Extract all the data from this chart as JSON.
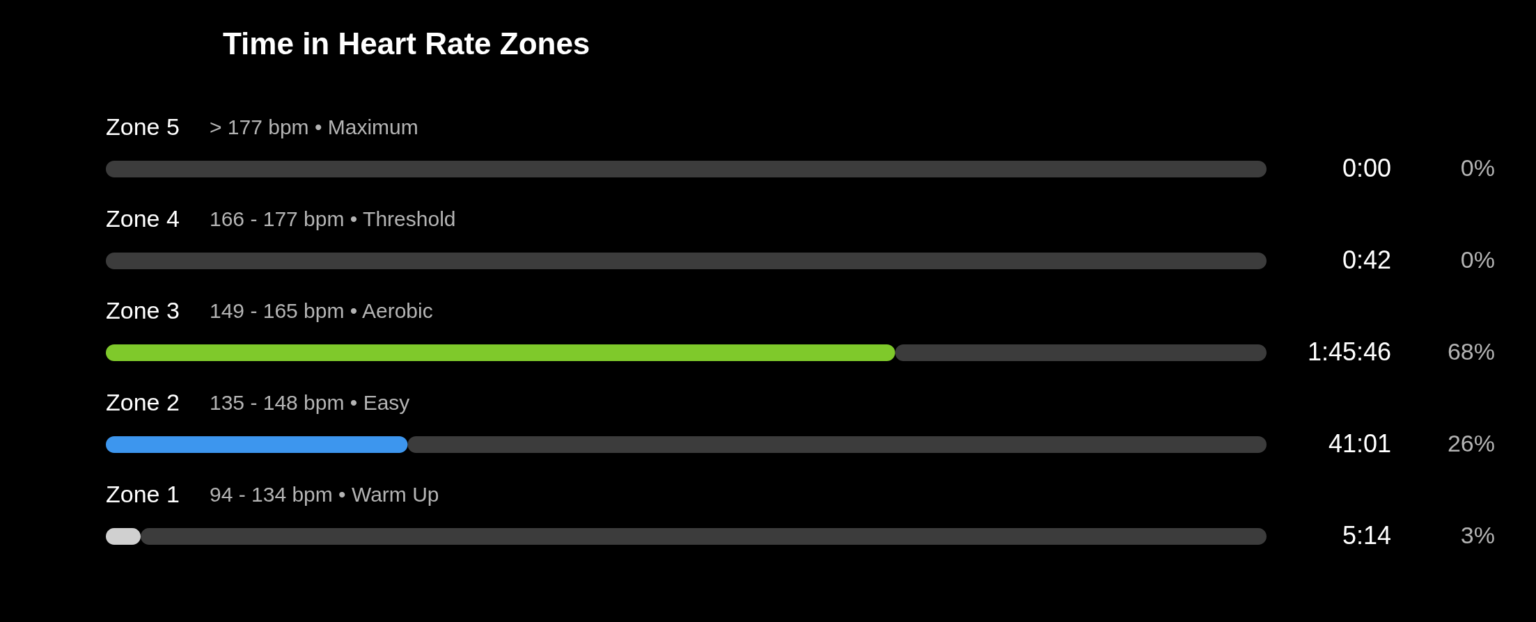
{
  "chart_data": {
    "type": "bar",
    "orientation": "horizontal",
    "stacked": true,
    "title": "Time in Heart Rate Zones",
    "categories": [
      "Zone 5",
      "Zone 4",
      "Zone 3",
      "Zone 2",
      "Zone 1"
    ],
    "xlim": [
      0,
      100
    ],
    "legend": false,
    "series": [
      {
        "colors": [
          "#d0d0d0",
          "#d0d0d0",
          "#7fc92b",
          "#3d96ee",
          "#d0d0d0"
        ],
        "values": [
          0,
          0,
          68,
          26,
          3
        ],
        "value_labels": [
          "0%",
          "0%",
          "68%",
          "26%",
          "3%"
        ]
      },
      {
        "color": "#3c3c3c",
        "values": [
          100,
          100,
          32,
          74,
          97
        ]
      }
    ],
    "annotations": [
      "> 177 bpm • Maximum",
      "0:00",
      "166 - 177 bpm • Threshold",
      "0:42",
      "149 - 165 bpm • Aerobic",
      "1:45:46",
      "135 - 148 bpm • Easy",
      "41:01",
      "94 - 134 bpm • Warm Up",
      "5:14"
    ]
  }
}
